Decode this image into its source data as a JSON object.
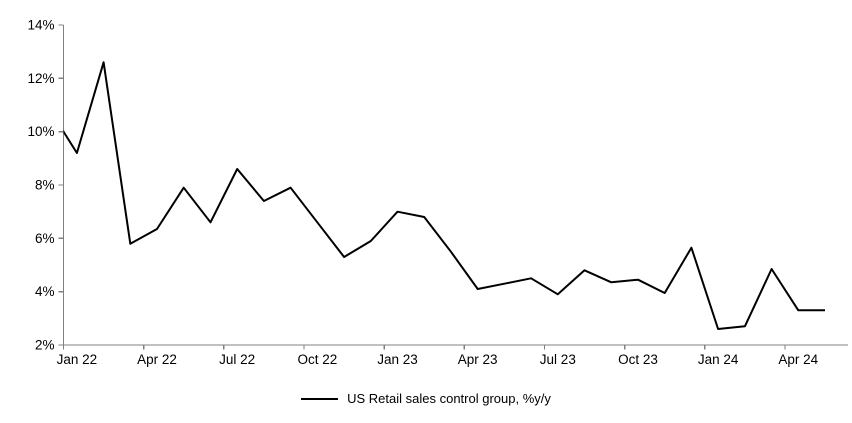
{
  "legend": {
    "label": "US Retail sales control group, %y/y"
  },
  "chart_data": {
    "type": "line",
    "title": "",
    "series_name": "US Retail sales control group, %y/y",
    "x": [
      "Dec 21",
      "Jan 22",
      "Feb 22",
      "Mar 22",
      "Apr 22",
      "May 22",
      "Jun 22",
      "Jul 22",
      "Aug 22",
      "Sep 22",
      "Oct 22",
      "Nov 22",
      "Dec 22",
      "Jan 23",
      "Feb 23",
      "Mar 23",
      "Apr 23",
      "May 23",
      "Jun 23",
      "Jul 23",
      "Aug 23",
      "Sep 23",
      "Oct 23",
      "Nov 23",
      "Dec 23",
      "Jan 24",
      "Feb 24",
      "Mar 24",
      "Apr 24",
      "May 24"
    ],
    "values": [
      10.8,
      9.2,
      12.6,
      5.8,
      6.35,
      7.9,
      6.6,
      8.6,
      7.4,
      7.9,
      6.6,
      5.3,
      5.9,
      7.0,
      6.8,
      5.5,
      4.1,
      4.3,
      4.5,
      3.9,
      4.8,
      4.35,
      4.45,
      3.95,
      5.65,
      2.6,
      2.7,
      4.85,
      3.3,
      3.3
    ],
    "first_point_clipped_at_axis": true,
    "ylim": [
      2,
      14
    ],
    "yticks": [
      2,
      4,
      6,
      8,
      10,
      12,
      14
    ],
    "ytick_labels": [
      "2%",
      "4%",
      "6%",
      "8%",
      "10%",
      "12%",
      "14%"
    ],
    "xtick_label_indices": [
      1,
      4,
      7,
      10,
      13,
      16,
      19,
      22,
      25,
      28
    ],
    "xtick_labels": [
      "Jan 22",
      "Apr 22",
      "Jul 22",
      "Oct 22",
      "Jan 23",
      "Apr 23",
      "Jul 23",
      "Oct 23",
      "Jan 24",
      "Apr 24"
    ],
    "grid": false,
    "legend_position": "bottom-center",
    "line_color": "#000000",
    "axis_color": "#808080"
  }
}
